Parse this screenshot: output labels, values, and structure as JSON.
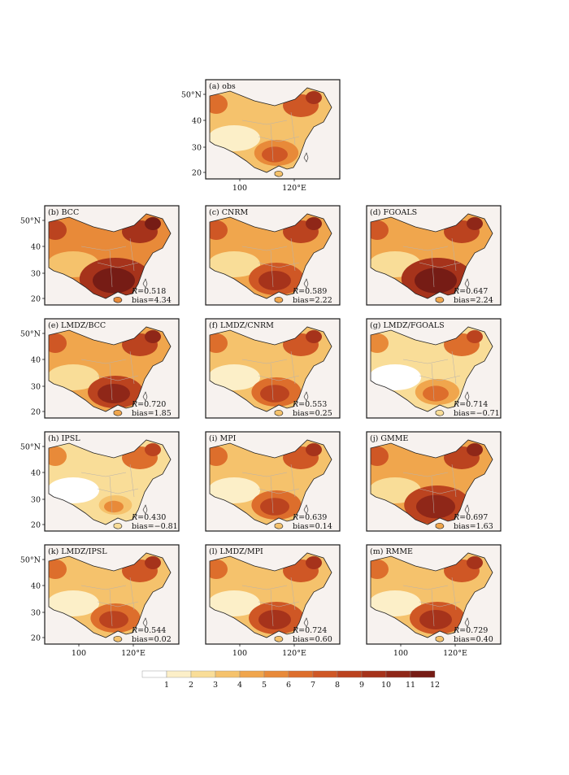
{
  "figure": {
    "colors": {
      "frame": "#1a1a1a",
      "map_background": "#f7f2ef",
      "coast": "#222222",
      "province": "#b9b2ad"
    },
    "colorbar": {
      "ticks": [
        "1",
        "2",
        "3",
        "4",
        "5",
        "6",
        "7",
        "8",
        "9",
        "10",
        "11",
        "12"
      ],
      "colors": [
        "#ffffff",
        "#fcefc8",
        "#f9dd98",
        "#f5c26c",
        "#f0a64d",
        "#e88a39",
        "#dd6e2c",
        "#cf5725",
        "#bb431f",
        "#a6331b",
        "#8f2718",
        "#761c15"
      ]
    }
  },
  "chart_data": [
    {
      "id": "a",
      "type": "heatmap",
      "title": "(a) obs",
      "R": "",
      "bias": "",
      "lat_ticks": [
        "50°N",
        "40",
        "30",
        "20"
      ],
      "lon_ticks": [
        "100",
        "120°E"
      ],
      "lon_range": [
        86,
        136
      ],
      "lat_range": [
        16,
        56
      ]
    },
    {
      "id": "b",
      "type": "heatmap",
      "title": "(b) BCC",
      "R": "=0.518",
      "bias": "bias=4.34",
      "lat_ticks": [
        "50°N",
        "40",
        "30",
        "20"
      ],
      "lon_ticks": [],
      "lon_range": [
        86,
        136
      ],
      "lat_range": [
        16,
        56
      ]
    },
    {
      "id": "c",
      "type": "heatmap",
      "title": "(c) CNRM",
      "R": "=0.589",
      "bias": "bias=2.22",
      "lat_ticks": [],
      "lon_ticks": [],
      "lon_range": [
        86,
        136
      ],
      "lat_range": [
        16,
        56
      ]
    },
    {
      "id": "d",
      "type": "heatmap",
      "title": "(d) FGOALS",
      "R": "=0.647",
      "bias": "bias=2.24",
      "lat_ticks": [],
      "lon_ticks": [],
      "lon_range": [
        86,
        136
      ],
      "lat_range": [
        16,
        56
      ]
    },
    {
      "id": "e",
      "type": "heatmap",
      "title": "(e) LMDZ/BCC",
      "R": "=0.720",
      "bias": "bias=1.85",
      "lat_ticks": [
        "50°N",
        "40",
        "30",
        "20"
      ],
      "lon_ticks": [],
      "lon_range": [
        86,
        136
      ],
      "lat_range": [
        16,
        56
      ]
    },
    {
      "id": "f",
      "type": "heatmap",
      "title": "(f) LMDZ/CNRM",
      "R": "=0.553",
      "bias": "bias=0.25",
      "lat_ticks": [],
      "lon_ticks": [],
      "lon_range": [
        86,
        136
      ],
      "lat_range": [
        16,
        56
      ]
    },
    {
      "id": "g",
      "type": "heatmap",
      "title": "(g) LMDZ/FGOALS",
      "R": "=0.714",
      "bias": "bias=−0.71",
      "lat_ticks": [],
      "lon_ticks": [],
      "lon_range": [
        86,
        136
      ],
      "lat_range": [
        16,
        56
      ]
    },
    {
      "id": "h",
      "type": "heatmap",
      "title": "(h) IPSL",
      "R": "=0.430",
      "bias": "bias=−0.81",
      "lat_ticks": [
        "50°N",
        "40",
        "30",
        "20"
      ],
      "lon_ticks": [],
      "lon_range": [
        86,
        136
      ],
      "lat_range": [
        16,
        56
      ]
    },
    {
      "id": "i",
      "type": "heatmap",
      "title": "(i) MPI",
      "R": "=0.639",
      "bias": "bias=0.14",
      "lat_ticks": [],
      "lon_ticks": [],
      "lon_range": [
        86,
        136
      ],
      "lat_range": [
        16,
        56
      ]
    },
    {
      "id": "j",
      "type": "heatmap",
      "title": "(j) GMME",
      "R": "=0.697",
      "bias": "bias=1.63",
      "lat_ticks": [],
      "lon_ticks": [],
      "lon_range": [
        86,
        136
      ],
      "lat_range": [
        16,
        56
      ]
    },
    {
      "id": "k",
      "type": "heatmap",
      "title": "(k) LMDZ/IPSL",
      "R": "=0.544",
      "bias": "bias=0.02",
      "lat_ticks": [
        "50°N",
        "40",
        "30",
        "20"
      ],
      "lon_ticks": [
        "100",
        "120°E"
      ],
      "lon_range": [
        86,
        136
      ],
      "lat_range": [
        16,
        56
      ]
    },
    {
      "id": "l",
      "type": "heatmap",
      "title": "(l) LMDZ/MPI",
      "R": "=0.724",
      "bias": "bias=0.60",
      "lat_ticks": [],
      "lon_ticks": [
        "100",
        "120°E"
      ],
      "lon_range": [
        86,
        136
      ],
      "lat_range": [
        16,
        56
      ]
    },
    {
      "id": "m",
      "type": "heatmap",
      "title": "(m) RMME",
      "R": "=0.729",
      "bias": "bias=0.40",
      "lat_ticks": [],
      "lon_ticks": [
        "100",
        "120°E"
      ],
      "lon_range": [
        86,
        136
      ],
      "lat_range": [
        16,
        56
      ]
    }
  ]
}
